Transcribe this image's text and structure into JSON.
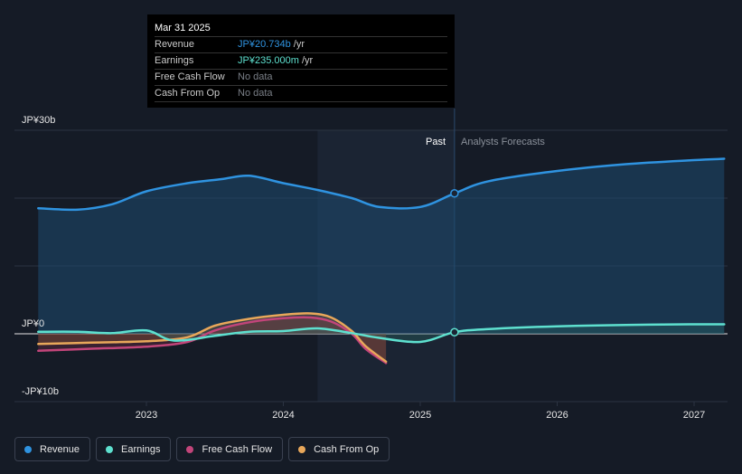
{
  "colors": {
    "revenue": "#2f93e0",
    "earnings": "#5ee0cf",
    "fcf": "#c2457a",
    "cfo": "#e8a75a",
    "background": "#151b26"
  },
  "tooltip": {
    "date": "Mar 31 2025",
    "rows": [
      {
        "name": "Revenue",
        "value": "JP¥20.734b",
        "unit": " /yr",
        "color": "#2f93e0"
      },
      {
        "name": "Earnings",
        "value": "JP¥235.000m",
        "unit": " /yr",
        "color": "#5ee0cf"
      },
      {
        "name": "Free Cash Flow",
        "value": "No data",
        "unit": "",
        "color": null
      },
      {
        "name": "Cash From Op",
        "value": "No data",
        "unit": "",
        "color": null
      }
    ]
  },
  "legend": [
    {
      "label": "Revenue",
      "color": "#2f93e0"
    },
    {
      "label": "Earnings",
      "color": "#5ee0cf"
    },
    {
      "label": "Free Cash Flow",
      "color": "#c2457a"
    },
    {
      "label": "Cash From Op",
      "color": "#e8a75a"
    }
  ],
  "chart_data": {
    "type": "line",
    "y_axis_labels": [
      "JP¥30b",
      "JP¥0",
      "-JP¥10b"
    ],
    "x_tick_labels": [
      "2023",
      "2024",
      "2025",
      "2026",
      "2027"
    ],
    "ylim": [
      -10,
      30
    ],
    "xlim": [
      2022.2,
      2027.22
    ],
    "past_label": "Past",
    "forecast_label": "Analysts Forecasts",
    "past_boundary_x": 2025.25,
    "highlight_start_x": 2024.25,
    "series": [
      {
        "name": "Revenue",
        "key": "revenue",
        "points": [
          [
            2022.21,
            18.5
          ],
          [
            2022.5,
            18.3
          ],
          [
            2022.75,
            19.1
          ],
          [
            2023.0,
            21.0
          ],
          [
            2023.3,
            22.2
          ],
          [
            2023.55,
            22.8
          ],
          [
            2023.75,
            23.3
          ],
          [
            2024.0,
            22.2
          ],
          [
            2024.25,
            21.2
          ],
          [
            2024.5,
            20.0
          ],
          [
            2024.7,
            18.7
          ],
          [
            2025.0,
            18.7
          ],
          [
            2025.25,
            20.7
          ],
          [
            2025.5,
            22.5
          ],
          [
            2026.0,
            24.0
          ],
          [
            2026.5,
            25.0
          ],
          [
            2027.0,
            25.6
          ],
          [
            2027.22,
            25.8
          ]
        ]
      },
      {
        "name": "Earnings",
        "key": "earnings",
        "points": [
          [
            2022.21,
            0.3
          ],
          [
            2022.5,
            0.3
          ],
          [
            2022.75,
            0.1
          ],
          [
            2023.0,
            0.5
          ],
          [
            2023.2,
            -1.0
          ],
          [
            2023.5,
            -0.3
          ],
          [
            2023.75,
            0.3
          ],
          [
            2024.0,
            0.4
          ],
          [
            2024.25,
            0.8
          ],
          [
            2024.5,
            0.1
          ],
          [
            2024.7,
            -0.6
          ],
          [
            2025.0,
            -1.2
          ],
          [
            2025.25,
            0.235
          ],
          [
            2025.5,
            0.7
          ],
          [
            2026.0,
            1.1
          ],
          [
            2026.5,
            1.3
          ],
          [
            2027.0,
            1.4
          ],
          [
            2027.22,
            1.4
          ]
        ]
      },
      {
        "name": "Free Cash Flow",
        "key": "fcf",
        "points": [
          [
            2022.21,
            -2.5
          ],
          [
            2022.6,
            -2.2
          ],
          [
            2023.0,
            -1.9
          ],
          [
            2023.3,
            -1.2
          ],
          [
            2023.5,
            0.5
          ],
          [
            2023.75,
            1.7
          ],
          [
            2024.0,
            2.3
          ],
          [
            2024.2,
            2.4
          ],
          [
            2024.35,
            1.8
          ],
          [
            2024.5,
            0.0
          ],
          [
            2024.6,
            -2.2
          ],
          [
            2024.75,
            -4.3
          ]
        ]
      },
      {
        "name": "Cash From Op",
        "key": "cfo",
        "points": [
          [
            2022.21,
            -1.5
          ],
          [
            2022.6,
            -1.3
          ],
          [
            2023.0,
            -1.1
          ],
          [
            2023.3,
            -0.5
          ],
          [
            2023.5,
            1.2
          ],
          [
            2023.75,
            2.2
          ],
          [
            2024.0,
            2.8
          ],
          [
            2024.2,
            3.0
          ],
          [
            2024.35,
            2.4
          ],
          [
            2024.5,
            0.4
          ],
          [
            2024.6,
            -1.8
          ],
          [
            2024.75,
            -4.1
          ]
        ]
      }
    ]
  }
}
